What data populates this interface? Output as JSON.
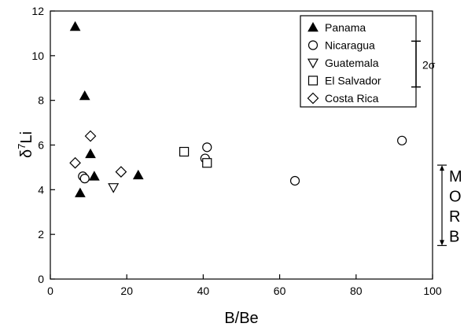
{
  "chart_data": {
    "type": "scatter",
    "xlabel": "B/Be",
    "ylabel": "δ7Li",
    "ylabel_main": "δ",
    "ylabel_sup": "7",
    "ylabel_tail": "Li",
    "xlim": [
      0,
      100
    ],
    "ylim": [
      0,
      12
    ],
    "xticks": [
      0,
      20,
      40,
      60,
      80,
      100
    ],
    "yticks": [
      0,
      2,
      4,
      6,
      8,
      10,
      12
    ],
    "grid": false,
    "legend_position": "top-right",
    "series": [
      {
        "name": "Panama",
        "marker": "filled-triangle-up",
        "points": [
          [
            6.5,
            11.3
          ],
          [
            9,
            8.2
          ],
          [
            10.5,
            5.6
          ],
          [
            11.5,
            4.6
          ],
          [
            23,
            4.65
          ],
          [
            7.8,
            3.85
          ]
        ]
      },
      {
        "name": "Nicaragua",
        "marker": "open-circle",
        "points": [
          [
            8.5,
            4.6
          ],
          [
            9,
            4.5
          ],
          [
            40.5,
            5.4
          ],
          [
            41,
            5.9
          ],
          [
            64,
            4.4
          ],
          [
            92,
            6.2
          ]
        ]
      },
      {
        "name": "Guatemala",
        "marker": "open-triangle-down",
        "points": [
          [
            16.5,
            4.1
          ]
        ]
      },
      {
        "name": "El Salvador",
        "marker": "open-square",
        "points": [
          [
            35,
            5.7
          ],
          [
            41,
            5.2
          ]
        ]
      },
      {
        "name": "Costa Rica",
        "marker": "open-diamond",
        "points": [
          [
            6.5,
            5.2
          ],
          [
            10.5,
            6.4
          ],
          [
            18.5,
            4.8
          ]
        ]
      }
    ],
    "annotations": {
      "error_bar": {
        "label": "2σ",
        "y_low": 8.6,
        "y_high": 10.65
      },
      "morb_range": {
        "letters": [
          "M",
          "O",
          "R",
          "B"
        ],
        "y_low": 1.5,
        "y_high": 5.1
      }
    }
  }
}
